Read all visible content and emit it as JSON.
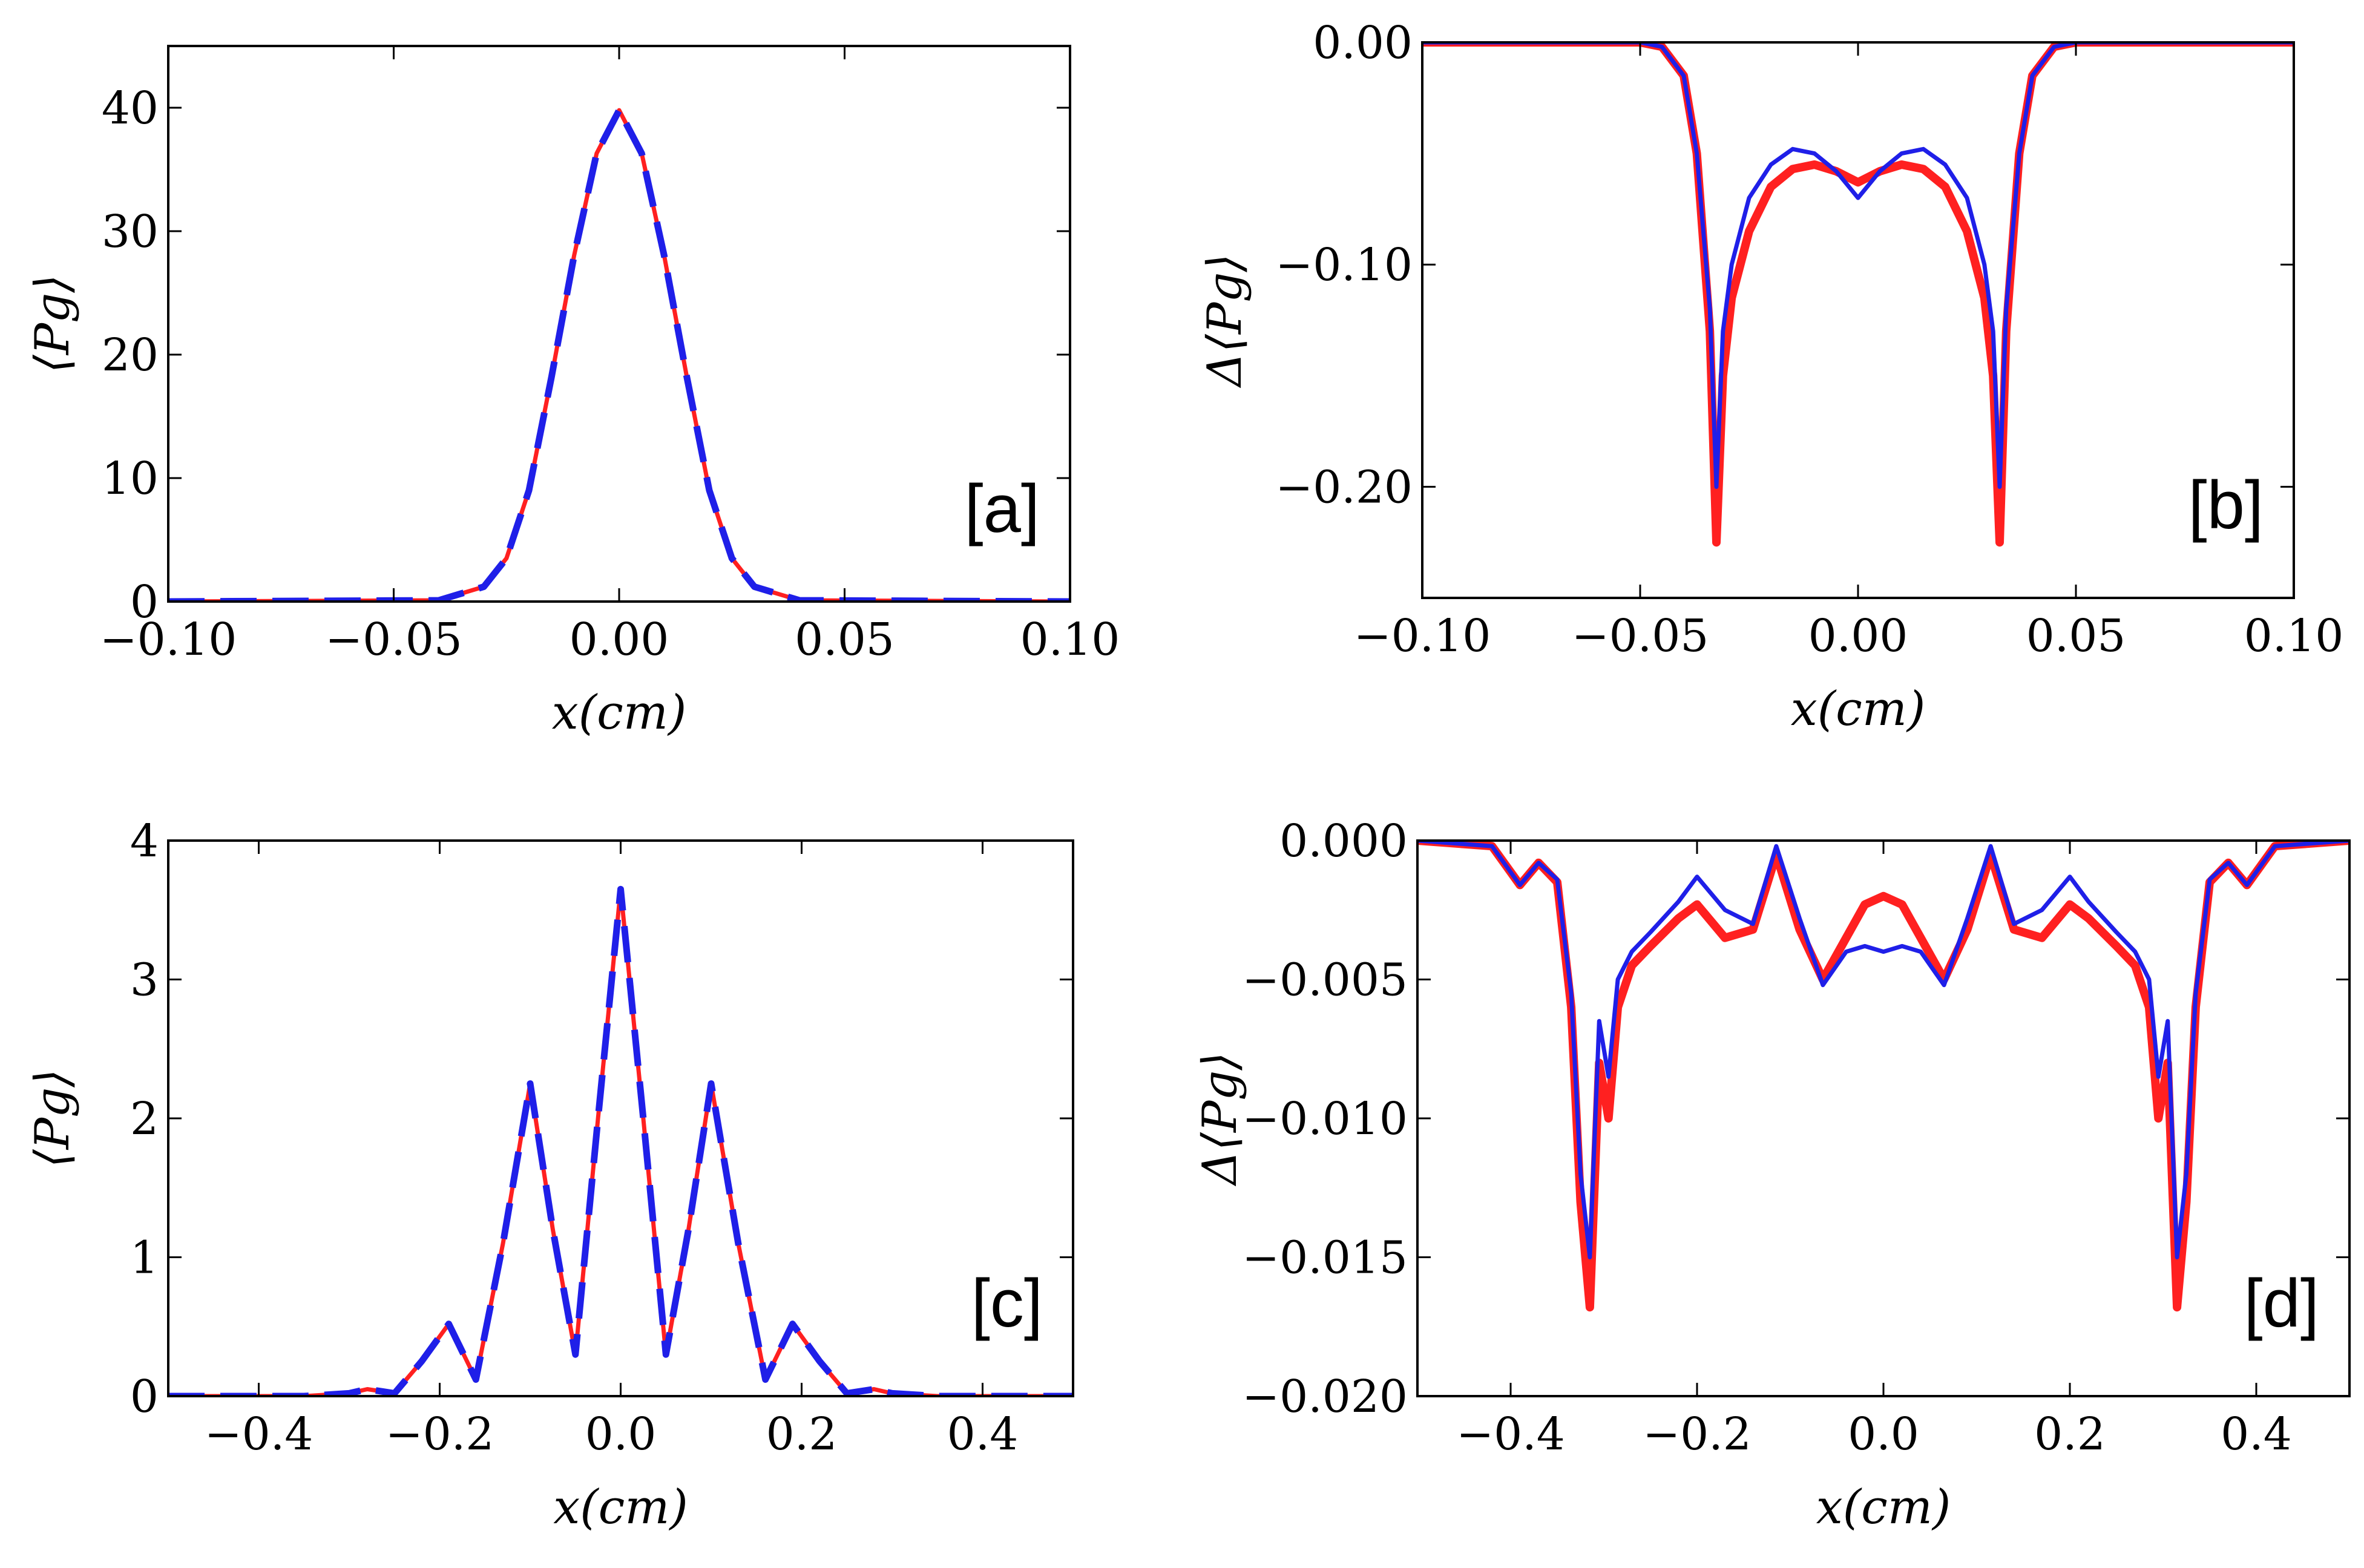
{
  "chart_data": [
    {
      "type": "line",
      "panel_label": "[a]",
      "xlabel": "x(cm)",
      "ylabel": "⟨Pg⟩",
      "xlim": [
        -0.1,
        0.1
      ],
      "ylim": [
        0,
        45
      ],
      "xticks": [
        -0.1,
        -0.05,
        0.0,
        0.05,
        0.1
      ],
      "xtick_labels": [
        "−0.10",
        "−0.05",
        "0.00",
        "0.05",
        "0.10"
      ],
      "yticks": [
        0,
        10,
        20,
        30,
        40
      ],
      "ytick_labels": [
        "0",
        "10",
        "20",
        "30",
        "40"
      ],
      "grid": false,
      "series": [
        {
          "name": "red-solid",
          "color": "#ff2020",
          "style": "solid",
          "x": [
            -0.1,
            -0.04,
            -0.03,
            -0.025,
            -0.02,
            -0.015,
            -0.01,
            -0.005,
            0.0,
            0.005,
            0.01,
            0.015,
            0.02,
            0.025,
            0.03,
            0.04,
            0.1
          ],
          "y": [
            0,
            0.1,
            1.2,
            3.5,
            9.0,
            18.2,
            28.0,
            36.3,
            39.8,
            36.3,
            28.0,
            18.2,
            9.0,
            3.5,
            1.2,
            0.1,
            0
          ]
        },
        {
          "name": "blue-dashed",
          "color": "#1f1fe8",
          "style": "dashed",
          "x": [
            -0.1,
            -0.04,
            -0.03,
            -0.025,
            -0.02,
            -0.015,
            -0.01,
            -0.005,
            0.0,
            0.005,
            0.01,
            0.015,
            0.02,
            0.025,
            0.03,
            0.04,
            0.1
          ],
          "y": [
            0,
            0.1,
            1.2,
            3.5,
            9.0,
            18.2,
            28.0,
            36.3,
            39.8,
            36.3,
            28.0,
            18.2,
            9.0,
            3.5,
            1.2,
            0.1,
            0
          ]
        }
      ]
    },
    {
      "type": "line",
      "panel_label": "[b]",
      "xlabel": "x(cm)",
      "ylabel": "Δ⟨Pg⟩",
      "xlim": [
        -0.1,
        0.1
      ],
      "ylim": [
        -0.25,
        0.0
      ],
      "xticks": [
        -0.1,
        -0.05,
        0.0,
        0.05,
        0.1
      ],
      "xtick_labels": [
        "−0.10",
        "−0.05",
        "0.00",
        "0.05",
        "0.10"
      ],
      "yticks": [
        0.0,
        -0.1,
        -0.2
      ],
      "ytick_labels": [
        "0.00",
        "−0.10",
        "−0.20"
      ],
      "grid": false,
      "series": [
        {
          "name": "red",
          "color": "#ff2020",
          "style": "solid",
          "x": [
            -0.1,
            -0.05,
            -0.045,
            -0.04,
            -0.037,
            -0.034,
            -0.0325,
            -0.031,
            -0.029,
            -0.027,
            -0.025,
            -0.02,
            -0.015,
            -0.01,
            -0.005,
            0.0,
            0.005,
            0.01,
            0.015,
            0.02,
            0.025,
            0.027,
            0.029,
            0.031,
            0.0325,
            0.034,
            0.037,
            0.04,
            0.045,
            0.05,
            0.1
          ],
          "y": [
            0,
            0,
            -0.002,
            -0.015,
            -0.05,
            -0.13,
            -0.225,
            -0.15,
            -0.115,
            -0.1,
            -0.085,
            -0.065,
            -0.057,
            -0.055,
            -0.058,
            -0.063,
            -0.058,
            -0.055,
            -0.057,
            -0.065,
            -0.085,
            -0.1,
            -0.115,
            -0.15,
            -0.225,
            -0.13,
            -0.05,
            -0.015,
            -0.002,
            0,
            0
          ]
        },
        {
          "name": "blue",
          "color": "#1f1fe8",
          "style": "solid",
          "x": [
            -0.1,
            -0.05,
            -0.045,
            -0.04,
            -0.037,
            -0.034,
            -0.0325,
            -0.031,
            -0.029,
            -0.027,
            -0.025,
            -0.02,
            -0.015,
            -0.01,
            -0.005,
            0.0,
            0.005,
            0.01,
            0.015,
            0.02,
            0.025,
            0.027,
            0.029,
            0.031,
            0.0325,
            0.034,
            0.037,
            0.04,
            0.045,
            0.05,
            0.1
          ],
          "y": [
            0,
            0,
            -0.002,
            -0.015,
            -0.05,
            -0.12,
            -0.2,
            -0.13,
            -0.1,
            -0.085,
            -0.07,
            -0.055,
            -0.048,
            -0.05,
            -0.058,
            -0.07,
            -0.058,
            -0.05,
            -0.048,
            -0.055,
            -0.07,
            -0.085,
            -0.1,
            -0.13,
            -0.2,
            -0.12,
            -0.05,
            -0.015,
            -0.002,
            0,
            0
          ]
        }
      ]
    },
    {
      "type": "line",
      "panel_label": "[c]",
      "xlabel": "x(cm)",
      "ylabel": "⟨Pg⟩",
      "xlim": [
        -0.5,
        0.5
      ],
      "ylim": [
        0,
        4
      ],
      "xticks": [
        -0.4,
        -0.2,
        0.0,
        0.2,
        0.4
      ],
      "xtick_labels": [
        "−0.4",
        "−0.2",
        "0.0",
        "0.2",
        "0.4"
      ],
      "yticks": [
        0,
        1,
        2,
        3,
        4
      ],
      "ytick_labels": [
        "0",
        "1",
        "2",
        "3",
        "4"
      ],
      "grid": false,
      "series": [
        {
          "name": "red-solid",
          "color": "#ff2020",
          "style": "solid",
          "x": [
            -0.5,
            -0.35,
            -0.3,
            -0.28,
            -0.25,
            -0.22,
            -0.19,
            -0.16,
            -0.13,
            -0.1,
            -0.075,
            -0.05,
            -0.025,
            0.0,
            0.025,
            0.05,
            0.075,
            0.1,
            0.13,
            0.16,
            0.19,
            0.22,
            0.25,
            0.28,
            0.3,
            0.35,
            0.5
          ],
          "y": [
            0,
            0.0,
            0.02,
            0.05,
            0.02,
            0.25,
            0.52,
            0.12,
            1.1,
            2.25,
            1.2,
            0.3,
            2.0,
            3.65,
            2.0,
            0.3,
            1.2,
            2.25,
            1.1,
            0.12,
            0.52,
            0.25,
            0.02,
            0.05,
            0.02,
            0.0,
            0
          ]
        },
        {
          "name": "blue-dashed",
          "color": "#1f1fe8",
          "style": "dashed",
          "x": [
            -0.5,
            -0.35,
            -0.3,
            -0.28,
            -0.25,
            -0.22,
            -0.19,
            -0.16,
            -0.13,
            -0.1,
            -0.075,
            -0.05,
            -0.025,
            0.0,
            0.025,
            0.05,
            0.075,
            0.1,
            0.13,
            0.16,
            0.19,
            0.22,
            0.25,
            0.28,
            0.3,
            0.35,
            0.5
          ],
          "y": [
            0,
            0.0,
            0.02,
            0.05,
            0.02,
            0.25,
            0.52,
            0.12,
            1.1,
            2.25,
            1.2,
            0.3,
            2.0,
            3.65,
            2.0,
            0.3,
            1.2,
            2.25,
            1.1,
            0.12,
            0.52,
            0.25,
            0.02,
            0.05,
            0.02,
            0.0,
            0
          ]
        }
      ]
    },
    {
      "type": "line",
      "panel_label": "[d]",
      "xlabel": "x(cm)",
      "ylabel": "Δ⟨Pg⟩",
      "xlim": [
        -0.5,
        0.5
      ],
      "ylim": [
        -0.02,
        0.0
      ],
      "xticks": [
        -0.4,
        -0.2,
        0.0,
        0.2,
        0.4
      ],
      "xtick_labels": [
        "−0.4",
        "−0.2",
        "0.0",
        "0.2",
        "0.4"
      ],
      "yticks": [
        0.0,
        -0.005,
        -0.01,
        -0.015,
        -0.02
      ],
      "ytick_labels": [
        "0.000",
        "−0.005",
        "−0.010",
        "−0.015",
        "−0.020"
      ],
      "grid": false,
      "series": [
        {
          "name": "red",
          "color": "#ff2020",
          "style": "solid",
          "x": [
            -0.5,
            -0.42,
            -0.39,
            -0.37,
            -0.35,
            -0.335,
            -0.325,
            -0.315,
            -0.305,
            -0.295,
            -0.285,
            -0.27,
            -0.25,
            -0.22,
            -0.2,
            -0.17,
            -0.14,
            -0.115,
            -0.09,
            -0.065,
            -0.04,
            -0.02,
            0.0,
            0.02,
            0.04,
            0.065,
            0.09,
            0.115,
            0.14,
            0.17,
            0.2,
            0.22,
            0.25,
            0.27,
            0.285,
            0.295,
            0.305,
            0.315,
            0.325,
            0.335,
            0.35,
            0.37,
            0.39,
            0.42,
            0.5
          ],
          "y": [
            0,
            -0.0002,
            -0.0016,
            -0.0008,
            -0.0015,
            -0.006,
            -0.013,
            -0.0168,
            -0.008,
            -0.01,
            -0.006,
            -0.0045,
            -0.0038,
            -0.0028,
            -0.0023,
            -0.0035,
            -0.0032,
            -0.0005,
            -0.0032,
            -0.005,
            -0.0035,
            -0.0023,
            -0.002,
            -0.0023,
            -0.0035,
            -0.005,
            -0.0032,
            -0.0005,
            -0.0032,
            -0.0035,
            -0.0023,
            -0.0028,
            -0.0038,
            -0.0045,
            -0.006,
            -0.01,
            -0.008,
            -0.0168,
            -0.013,
            -0.006,
            -0.0015,
            -0.0008,
            -0.0016,
            -0.0002,
            0
          ]
        },
        {
          "name": "blue",
          "color": "#1f1fe8",
          "style": "solid",
          "x": [
            -0.5,
            -0.42,
            -0.39,
            -0.37,
            -0.35,
            -0.335,
            -0.325,
            -0.315,
            -0.305,
            -0.295,
            -0.285,
            -0.27,
            -0.25,
            -0.22,
            -0.2,
            -0.17,
            -0.14,
            -0.115,
            -0.09,
            -0.065,
            -0.04,
            -0.02,
            0.0,
            0.02,
            0.04,
            0.065,
            0.09,
            0.115,
            0.14,
            0.17,
            0.2,
            0.22,
            0.25,
            0.27,
            0.285,
            0.295,
            0.305,
            0.315,
            0.325,
            0.335,
            0.35,
            0.37,
            0.39,
            0.42,
            0.5
          ],
          "y": [
            0,
            -0.0002,
            -0.0016,
            -0.0008,
            -0.0014,
            -0.0055,
            -0.012,
            -0.015,
            -0.0065,
            -0.0085,
            -0.005,
            -0.004,
            -0.0033,
            -0.0022,
            -0.0013,
            -0.0025,
            -0.003,
            -0.0002,
            -0.0028,
            -0.0052,
            -0.004,
            -0.0038,
            -0.004,
            -0.0038,
            -0.004,
            -0.0052,
            -0.0028,
            -0.0002,
            -0.003,
            -0.0025,
            -0.0013,
            -0.0022,
            -0.0033,
            -0.004,
            -0.005,
            -0.0085,
            -0.0065,
            -0.015,
            -0.012,
            -0.0055,
            -0.0014,
            -0.0008,
            -0.0016,
            -0.0002,
            0
          ]
        }
      ]
    }
  ]
}
